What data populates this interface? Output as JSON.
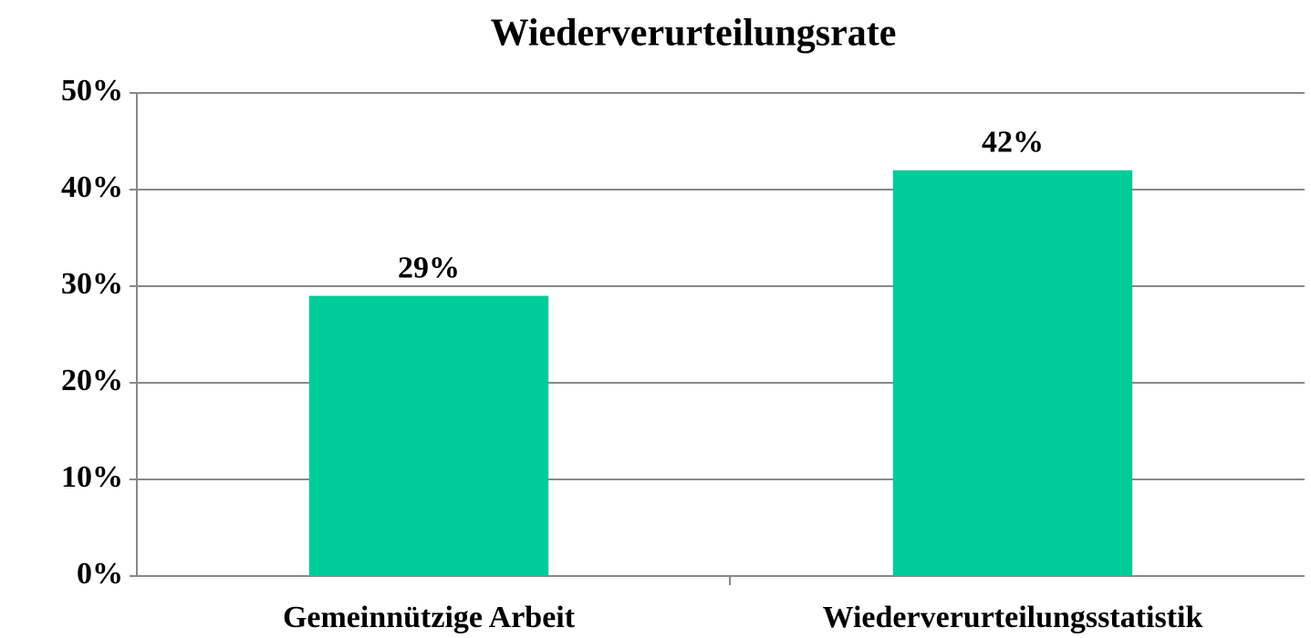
{
  "chart_data": {
    "type": "bar",
    "title": "Wiederverurteilungsrate",
    "categories": [
      "Gemeinnützige Arbeit",
      "Wiederverurteilungsstatistik"
    ],
    "values": [
      29,
      42
    ],
    "value_labels": [
      "29%",
      "42%"
    ],
    "color": "#00cc99",
    "ylim": [
      0,
      50
    ],
    "yticks": [
      {
        "value": 0,
        "label": "0%"
      },
      {
        "value": 10,
        "label": "10%"
      },
      {
        "value": 20,
        "label": "20%"
      },
      {
        "value": 30,
        "label": "30%"
      },
      {
        "value": 40,
        "label": "40%"
      },
      {
        "value": 50,
        "label": "50%"
      }
    ],
    "grid": true
  }
}
